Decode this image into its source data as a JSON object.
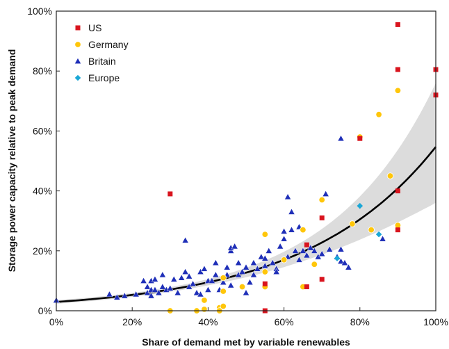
{
  "chart_data": {
    "type": "scatter",
    "xlabel": "Share of demand met by variable renewables",
    "ylabel": "Storage power capacity relative to peak demand",
    "xlim": [
      0,
      100
    ],
    "ylim": [
      0,
      100
    ],
    "x_ticks": [
      {
        "value": 0,
        "label": "0%"
      },
      {
        "value": 20,
        "label": "20%"
      },
      {
        "value": 40,
        "label": "40%"
      },
      {
        "value": 60,
        "label": "60%"
      },
      {
        "value": 80,
        "label": "80%"
      },
      {
        "value": 100,
        "label": "100%"
      }
    ],
    "y_ticks": [
      {
        "value": 0,
        "label": "0%"
      },
      {
        "value": 20,
        "label": "20%"
      },
      {
        "value": 40,
        "label": "40%"
      },
      {
        "value": 60,
        "label": "60%"
      },
      {
        "value": 80,
        "label": "80%"
      },
      {
        "value": 100,
        "label": "100%"
      }
    ],
    "grid": false,
    "legend_position": "top-left",
    "fit": {
      "type": "exponential",
      "equation": "y = 2.95*exp(0.0292*x)",
      "band": {
        "lower_at_100": 36.6,
        "upper_at_100": 75.4
      },
      "line_color": "#000000",
      "band_color": "#dcdcdc"
    },
    "series": [
      {
        "name": "US",
        "marker": "square",
        "color": "#d9141e",
        "points": [
          [
            30,
            39
          ],
          [
            55,
            0
          ],
          [
            55,
            9
          ],
          [
            66,
            8
          ],
          [
            66,
            22
          ],
          [
            70,
            10.5
          ],
          [
            70,
            31
          ],
          [
            80,
            57.5
          ],
          [
            90,
            27
          ],
          [
            90,
            40
          ],
          [
            90,
            80.5
          ],
          [
            90,
            95.5
          ],
          [
            100,
            72
          ],
          [
            100,
            80.5
          ]
        ]
      },
      {
        "name": "Germany",
        "marker": "circle",
        "color": "#ffc60a",
        "points": [
          [
            30,
            0
          ],
          [
            37,
            0
          ],
          [
            39,
            3.5
          ],
          [
            39,
            0.5
          ],
          [
            43,
            1
          ],
          [
            43,
            0
          ],
          [
            44,
            1.5
          ],
          [
            44,
            6.5
          ],
          [
            44,
            11
          ],
          [
            49,
            8
          ],
          [
            55,
            8
          ],
          [
            55,
            13
          ],
          [
            55,
            25.5
          ],
          [
            60,
            17
          ],
          [
            65,
            8
          ],
          [
            65,
            27
          ],
          [
            68,
            15.5
          ],
          [
            70,
            37
          ],
          [
            78,
            29
          ],
          [
            80,
            58
          ],
          [
            83,
            27
          ],
          [
            85,
            65.5
          ],
          [
            88,
            45
          ],
          [
            90,
            28.5
          ],
          [
            90,
            73.5
          ]
        ]
      },
      {
        "name": "Britain",
        "marker": "triangle",
        "color": "#1f2fb8",
        "points": [
          [
            0,
            3.5
          ],
          [
            14,
            5.5
          ],
          [
            16,
            4.5
          ],
          [
            18,
            5
          ],
          [
            21,
            5.5
          ],
          [
            23,
            10
          ],
          [
            24,
            6
          ],
          [
            24,
            8
          ],
          [
            25,
            5
          ],
          [
            25,
            7
          ],
          [
            25,
            10
          ],
          [
            26,
            7
          ],
          [
            26,
            10.5
          ],
          [
            27,
            6
          ],
          [
            28,
            8
          ],
          [
            28,
            12
          ],
          [
            29,
            7
          ],
          [
            30,
            7.5
          ],
          [
            31,
            10.5
          ],
          [
            32,
            6
          ],
          [
            33,
            11
          ],
          [
            34,
            13
          ],
          [
            34,
            23.5
          ],
          [
            35,
            8
          ],
          [
            35,
            11.5
          ],
          [
            36,
            9
          ],
          [
            37,
            6
          ],
          [
            38,
            13
          ],
          [
            38,
            5.5
          ],
          [
            39,
            14
          ],
          [
            40,
            7
          ],
          [
            40,
            10
          ],
          [
            41,
            10
          ],
          [
            42,
            12
          ],
          [
            42,
            16
          ],
          [
            43,
            7
          ],
          [
            44,
            9.5
          ],
          [
            45,
            12
          ],
          [
            45,
            14.5
          ],
          [
            46,
            8.5
          ],
          [
            46,
            20
          ],
          [
            46,
            21
          ],
          [
            47,
            21.5
          ],
          [
            48,
            12
          ],
          [
            48,
            16
          ],
          [
            49,
            13
          ],
          [
            50,
            6
          ],
          [
            50,
            14.5
          ],
          [
            51,
            9.5
          ],
          [
            52,
            12
          ],
          [
            52,
            16
          ],
          [
            53,
            14
          ],
          [
            54,
            18
          ],
          [
            55,
            15
          ],
          [
            55,
            17.5
          ],
          [
            56,
            20
          ],
          [
            57,
            16
          ],
          [
            58,
            14
          ],
          [
            58,
            13
          ],
          [
            59,
            21.5
          ],
          [
            60,
            24
          ],
          [
            60,
            26.5
          ],
          [
            61,
            38
          ],
          [
            61,
            18
          ],
          [
            62,
            27
          ],
          [
            62,
            33
          ],
          [
            63,
            20
          ],
          [
            64,
            17
          ],
          [
            64,
            28
          ],
          [
            65,
            20
          ],
          [
            66,
            18.5
          ],
          [
            67,
            21
          ],
          [
            68,
            20
          ],
          [
            69,
            18
          ],
          [
            70,
            19
          ],
          [
            71,
            39
          ],
          [
            72,
            20.5
          ],
          [
            74,
            18
          ],
          [
            75,
            57.5
          ],
          [
            75,
            20.5
          ],
          [
            75,
            16.5
          ],
          [
            76,
            16
          ],
          [
            77,
            14.5
          ],
          [
            86,
            24
          ]
        ]
      },
      {
        "name": "Europe",
        "marker": "diamond",
        "color": "#1ba7d6",
        "points": [
          [
            74,
            17.5
          ],
          [
            80,
            35
          ],
          [
            85,
            25.5
          ]
        ]
      }
    ]
  }
}
